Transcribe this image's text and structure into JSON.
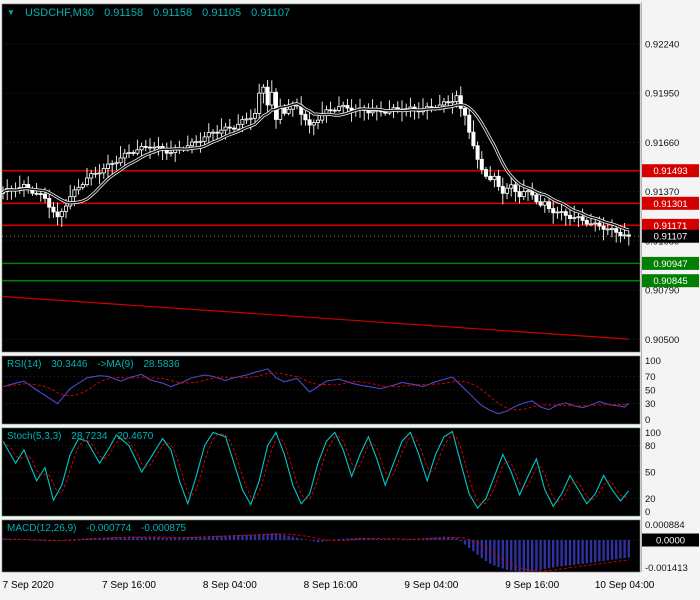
{
  "header": {
    "collapse_arrow": "▼",
    "symbol_period": "USDCHF,M30",
    "open": "0.91158",
    "high": "0.91158",
    "low": "0.91105",
    "close": "0.91107"
  },
  "colors": {
    "panel_bg": "#000000",
    "outer_bg": "#f4f4f4",
    "title": "#00b3b3",
    "resistance": "#d40000",
    "support": "#007f00",
    "trendline": "#cc0000",
    "candle_up": "#000000",
    "candle_down": "#ffffff",
    "candle_border": "#ffffff",
    "ma_line": "#111111",
    "ma_halo": "#ffffff",
    "rsi_line": "#4a4ac8",
    "rsi_ma": "#e00000",
    "stoch_k": "#00c8c8",
    "stoch_d": "#e00000",
    "macd_hist": "#3030a0",
    "macd_signal": "#e00000",
    "grid": "#3a3a3a",
    "axis_text": "#111111",
    "current_price_bg": "#000000"
  },
  "time_axis": {
    "labels": [
      {
        "label": "7 Sep 2020",
        "bar": 6
      },
      {
        "label": "7 Sep 16:00",
        "bar": 30
      },
      {
        "label": "8 Sep 04:00",
        "bar": 54
      },
      {
        "label": "8 Sep 16:00",
        "bar": 78
      },
      {
        "label": "9 Sep 04:00",
        "bar": 102
      },
      {
        "label": "9 Sep 16:00",
        "bar": 126
      },
      {
        "label": "10 Sep 04:00",
        "bar": 148
      }
    ]
  },
  "chart_data": [
    {
      "type": "candlestick",
      "title": "USDCHF,M30",
      "ylim": [
        0.90425,
        0.92475
      ],
      "axis_ticks": [
        "0.92240",
        "0.91950",
        "0.91660",
        "0.91370",
        "0.91080",
        "0.90790",
        "0.90500"
      ],
      "levels": {
        "resistance": [
          "0.91493",
          "0.91301",
          "0.91171"
        ],
        "support": [
          "0.90947",
          "0.90845"
        ],
        "current": "0.91107"
      },
      "trendline": {
        "from_bar": 0,
        "from_price": 0.90752,
        "to_bar": 149,
        "to_price": 0.90501
      },
      "first_open": 0.9136,
      "ma_period": 10,
      "wick_up": [
        0.0003,
        0.00055,
        0.00018,
        0.00042,
        0.0007,
        0.00025,
        0.00048,
        0.00015,
        0.0006,
        0.00022,
        0.00038,
        0.00052
      ],
      "wick_down": [
        0.0002,
        0.00045,
        0.0006,
        0.00015,
        0.00035,
        0.00055,
        0.00025,
        0.0004,
        0.00012,
        0.0005,
        0.00028,
        0.00065
      ],
      "closes": [
        0.9137,
        0.91388,
        0.91382,
        0.91376,
        0.91394,
        0.91412,
        0.91386,
        0.9136,
        0.91358,
        0.91356,
        0.9133,
        0.91278,
        0.9125,
        0.91222,
        0.91253,
        0.91285,
        0.9134,
        0.9138,
        0.91395,
        0.91411,
        0.9145,
        0.91476,
        0.91478,
        0.9148,
        0.91506,
        0.91532,
        0.91536,
        0.9154,
        0.91568,
        0.91596,
        0.916,
        0.91596,
        0.91616,
        0.91636,
        0.91632,
        0.91628,
        0.91632,
        0.91636,
        0.91616,
        0.91596,
        0.916,
        0.91622,
        0.9162,
        0.91618,
        0.9164,
        0.91662,
        0.91664,
        0.91666,
        0.91692,
        0.91718,
        0.9172,
        0.91714,
        0.91732,
        0.9175,
        0.91744,
        0.91738,
        0.91766,
        0.91794,
        0.91798,
        0.91802,
        0.9183,
        0.9195,
        0.91985,
        0.9188,
        0.91955,
        0.91795,
        0.9187,
        0.91831,
        0.91855,
        0.9188,
        0.9188,
        0.91825,
        0.91793,
        0.91762,
        0.91777,
        0.91791,
        0.9183,
        0.91852,
        0.9185,
        0.91848,
        0.9187,
        0.91878,
        0.91862,
        0.91846,
        0.91854,
        0.91862,
        0.91848,
        0.91834,
        0.91844,
        0.91854,
        0.9184,
        0.91832,
        0.91848,
        0.91864,
        0.91856,
        0.91848,
        0.91858,
        0.91868,
        0.91854,
        0.9184,
        0.9185,
        0.9187,
        0.91865,
        0.91861,
        0.9188,
        0.91899,
        0.91893,
        0.919,
        0.91935,
        0.9186,
        0.9182,
        0.9172,
        0.9164,
        0.9156,
        0.915,
        0.9146,
        0.9144,
        0.9146,
        0.914,
        0.9136,
        0.9139,
        0.9141,
        0.9137,
        0.9134,
        0.9137,
        0.91375,
        0.9135,
        0.9131,
        0.9129,
        0.9131,
        0.9127,
        0.91245,
        0.9125,
        0.91252,
        0.9123,
        0.91211,
        0.91217,
        0.91222,
        0.912,
        0.91178,
        0.9118,
        0.91185,
        0.91167,
        0.91148,
        0.9115,
        0.91152,
        0.9113,
        0.9111,
        0.91115,
        0.91107
      ]
    },
    {
      "type": "line",
      "name": "RSI(14)",
      "value": "30.3446",
      "ma_label": "->MA(9)",
      "ma_value": "28.5836",
      "ylim": [
        0,
        100
      ],
      "axis_ticks": [
        100,
        70,
        50,
        30,
        0
      ],
      "grid_levels": [
        70,
        50,
        30
      ],
      "ma_period": 9,
      "points": [
        [
          0,
          55
        ],
        [
          3,
          60
        ],
        [
          5,
          63
        ],
        [
          8,
          50
        ],
        [
          11,
          38
        ],
        [
          13,
          30
        ],
        [
          16,
          52
        ],
        [
          20,
          68
        ],
        [
          23,
          71
        ],
        [
          25,
          70
        ],
        [
          28,
          63
        ],
        [
          30,
          68
        ],
        [
          33,
          73
        ],
        [
          35,
          65
        ],
        [
          38,
          60
        ],
        [
          40,
          55
        ],
        [
          43,
          62
        ],
        [
          45,
          68
        ],
        [
          48,
          72
        ],
        [
          50,
          70
        ],
        [
          53,
          64
        ],
        [
          55,
          68
        ],
        [
          58,
          72
        ],
        [
          60,
          76
        ],
        [
          63,
          81
        ],
        [
          65,
          68
        ],
        [
          67,
          62
        ],
        [
          70,
          67
        ],
        [
          73,
          47
        ],
        [
          75,
          55
        ],
        [
          77,
          63
        ],
        [
          80,
          66
        ],
        [
          83,
          60
        ],
        [
          85,
          57
        ],
        [
          88,
          54
        ],
        [
          90,
          52
        ],
        [
          93,
          57
        ],
        [
          95,
          61
        ],
        [
          98,
          58
        ],
        [
          100,
          55
        ],
        [
          103,
          62
        ],
        [
          105,
          66
        ],
        [
          107,
          69
        ],
        [
          110,
          51
        ],
        [
          112,
          39
        ],
        [
          114,
          27
        ],
        [
          116,
          20
        ],
        [
          118,
          15
        ],
        [
          120,
          19
        ],
        [
          122,
          26
        ],
        [
          124,
          31
        ],
        [
          126,
          34
        ],
        [
          128,
          25
        ],
        [
          130,
          21
        ],
        [
          132,
          28
        ],
        [
          134,
          31
        ],
        [
          136,
          27
        ],
        [
          138,
          24
        ],
        [
          140,
          28
        ],
        [
          142,
          33
        ],
        [
          144,
          29
        ],
        [
          146,
          27
        ],
        [
          148,
          25
        ],
        [
          149,
          30.34
        ]
      ]
    },
    {
      "type": "line",
      "name": "Stoch(5,3,3)",
      "value": "28.7234",
      "d_value": "20.4670",
      "ylim": [
        0,
        100
      ],
      "axis_ticks": [
        100,
        80,
        50,
        20,
        0
      ],
      "grid_levels": [
        80,
        50,
        20
      ],
      "d_period": 3,
      "points": [
        [
          0,
          85
        ],
        [
          3,
          60
        ],
        [
          5,
          75
        ],
        [
          8,
          40
        ],
        [
          10,
          55
        ],
        [
          12,
          18
        ],
        [
          14,
          35
        ],
        [
          16,
          70
        ],
        [
          18,
          88
        ],
        [
          20,
          85
        ],
        [
          23,
          60
        ],
        [
          25,
          75
        ],
        [
          27,
          92
        ],
        [
          30,
          80
        ],
        [
          33,
          50
        ],
        [
          35,
          65
        ],
        [
          38,
          88
        ],
        [
          40,
          75
        ],
        [
          42,
          40
        ],
        [
          44,
          14
        ],
        [
          46,
          45
        ],
        [
          48,
          80
        ],
        [
          50,
          95
        ],
        [
          53,
          90
        ],
        [
          55,
          60
        ],
        [
          57,
          30
        ],
        [
          59,
          13
        ],
        [
          61,
          40
        ],
        [
          63,
          80
        ],
        [
          65,
          95
        ],
        [
          67,
          70
        ],
        [
          69,
          35
        ],
        [
          71,
          14
        ],
        [
          73,
          25
        ],
        [
          75,
          60
        ],
        [
          77,
          85
        ],
        [
          79,
          95
        ],
        [
          81,
          75
        ],
        [
          83,
          45
        ],
        [
          85,
          70
        ],
        [
          87,
          90
        ],
        [
          89,
          65
        ],
        [
          91,
          35
        ],
        [
          93,
          60
        ],
        [
          95,
          85
        ],
        [
          97,
          95
        ],
        [
          99,
          70
        ],
        [
          101,
          40
        ],
        [
          103,
          70
        ],
        [
          105,
          90
        ],
        [
          107,
          96
        ],
        [
          109,
          60
        ],
        [
          111,
          25
        ],
        [
          113,
          9
        ],
        [
          115,
          20
        ],
        [
          117,
          45
        ],
        [
          119,
          70
        ],
        [
          121,
          50
        ],
        [
          123,
          24
        ],
        [
          125,
          45
        ],
        [
          127,
          65
        ],
        [
          129,
          30
        ],
        [
          131,
          11
        ],
        [
          133,
          25
        ],
        [
          135,
          46
        ],
        [
          137,
          30
        ],
        [
          139,
          14
        ],
        [
          141,
          25
        ],
        [
          143,
          46
        ],
        [
          145,
          30
        ],
        [
          147,
          17
        ],
        [
          149,
          28.72
        ]
      ]
    },
    {
      "type": "histogram",
      "name": "MACD(12,26,9)",
      "value": "-0.000774",
      "signal_value": "-0.000875",
      "ylim": [
        -0.001413,
        0.000884
      ],
      "axis_ticks": [
        "0.000884",
        "-0.001413"
      ],
      "zero_label": "0.0000",
      "signal_period": 9,
      "points": [
        [
          0,
          5e-05
        ],
        [
          10,
          -5e-05
        ],
        [
          20,
          8e-05
        ],
        [
          30,
          0.00015
        ],
        [
          40,
          0.0001
        ],
        [
          50,
          0.00018
        ],
        [
          60,
          0.00025
        ],
        [
          65,
          0.0003
        ],
        [
          70,
          0.0001
        ],
        [
          75,
          -0.0001
        ],
        [
          80,
          5e-05
        ],
        [
          85,
          0.0001
        ],
        [
          90,
          5e-05
        ],
        [
          95,
          2e-05
        ],
        [
          100,
          8e-05
        ],
        [
          105,
          0.00015
        ],
        [
          108,
          0.0001
        ],
        [
          110,
          -0.0002
        ],
        [
          112,
          -0.0005
        ],
        [
          114,
          -0.0008
        ],
        [
          116,
          -0.00105
        ],
        [
          118,
          -0.0012
        ],
        [
          120,
          -0.00132
        ],
        [
          123,
          -0.0014
        ],
        [
          126,
          -0.00138
        ],
        [
          129,
          -0.00128
        ],
        [
          132,
          -0.00118
        ],
        [
          135,
          -0.00112
        ],
        [
          138,
          -0.00105
        ],
        [
          141,
          -0.00098
        ],
        [
          144,
          -0.0009
        ],
        [
          147,
          -0.00082
        ],
        [
          149,
          -0.000774
        ]
      ]
    }
  ]
}
